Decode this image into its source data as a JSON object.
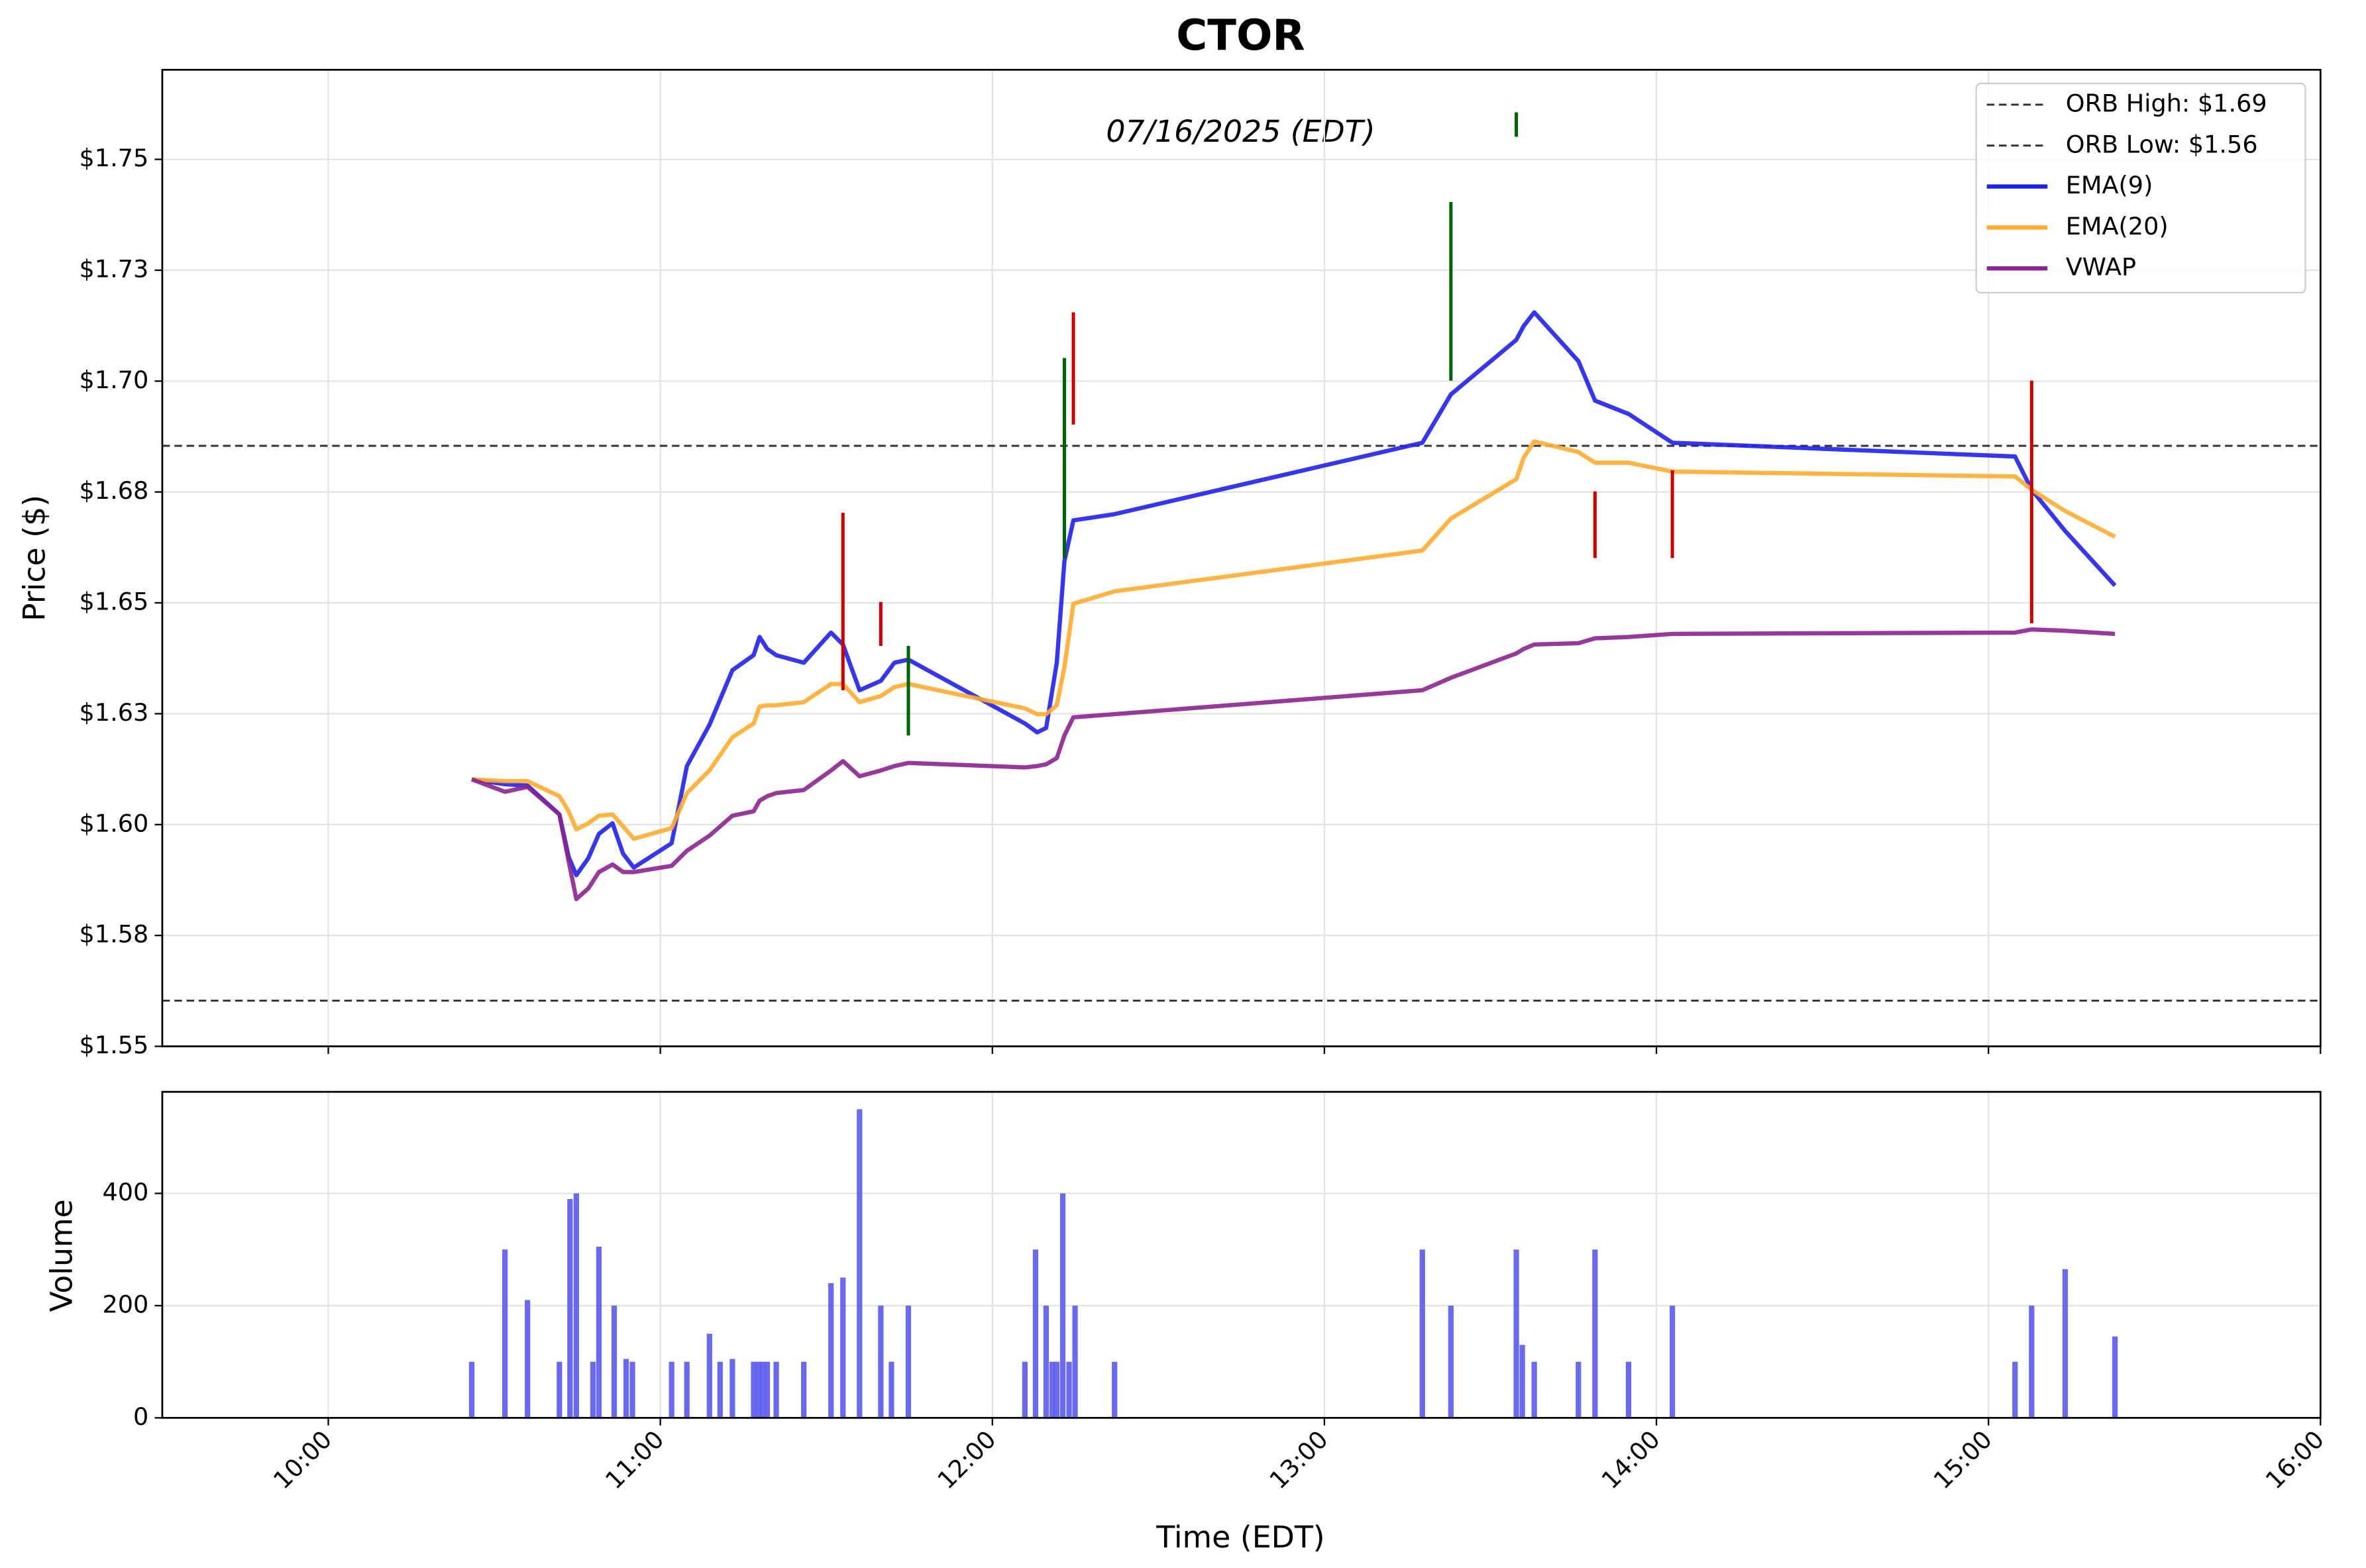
{
  "chart_data": [
    {
      "type": "line",
      "title": "CTOR",
      "subtitle": "07/16/2025 (EDT)",
      "y_label": "Price ($)",
      "xlim": [
        9.5,
        16
      ],
      "xticks": [
        10,
        11,
        12,
        13,
        14,
        15,
        16
      ],
      "ylim": [
        1.55,
        1.7702
      ],
      "yticks": [
        {
          "value": 1.55,
          "label": "$1.55"
        },
        {
          "value": 1.575,
          "label": "$1.58"
        },
        {
          "value": 1.6,
          "label": "$1.60"
        },
        {
          "value": 1.625,
          "label": "$1.63"
        },
        {
          "value": 1.65,
          "label": "$1.65"
        },
        {
          "value": 1.675,
          "label": "$1.68"
        },
        {
          "value": 1.7,
          "label": "$1.70"
        },
        {
          "value": 1.725,
          "label": "$1.73"
        },
        {
          "value": 1.75,
          "label": "$1.75"
        }
      ],
      "grid": true,
      "legend": "upper right",
      "hlines": [
        {
          "name": "ORB High: $1.69",
          "value": 1.6854,
          "color": "#333333"
        },
        {
          "name": "ORB Low: $1.56",
          "value": 1.5603,
          "color": "#333333"
        }
      ],
      "x": [
        10.432,
        10.532,
        10.6,
        10.696,
        10.724,
        10.747,
        10.783,
        10.815,
        10.856,
        10.888,
        10.92,
        11.034,
        11.08,
        11.148,
        11.217,
        11.281,
        11.299,
        11.322,
        11.349,
        11.432,
        11.514,
        11.55,
        11.6,
        11.664,
        11.705,
        11.747,
        12.098,
        12.135,
        12.162,
        12.194,
        12.217,
        12.244,
        12.368,
        13.295,
        13.381,
        13.578,
        13.6,
        13.632,
        13.765,
        13.815,
        13.916,
        14.048,
        15.08,
        15.13,
        15.231,
        15.381
      ],
      "series": [
        {
          "name": "EMA(9)",
          "color": "#2020ee",
          "values": [
            1.6102,
            1.6091,
            1.6088,
            1.6023,
            1.5927,
            1.5886,
            1.5924,
            1.5979,
            1.6003,
            1.5934,
            1.5903,
            1.5958,
            1.6132,
            1.6225,
            1.6348,
            1.6382,
            1.6423,
            1.6396,
            1.6382,
            1.6365,
            1.6433,
            1.6406,
            1.6303,
            1.6324,
            1.6365,
            1.6372,
            1.6228,
            1.6208,
            1.6218,
            1.6365,
            1.6594,
            1.6686,
            1.67,
            1.6861,
            1.697,
            1.7093,
            1.7124,
            1.7155,
            1.7045,
            1.6956,
            1.6926,
            1.6861,
            1.683,
            1.6755,
            1.6662,
            1.6539
          ]
        },
        {
          "name": "EMA(20)",
          "color": "#ffab2e",
          "values": [
            1.6102,
            1.6098,
            1.6098,
            1.6064,
            1.603,
            1.5989,
            1.6003,
            1.602,
            1.6023,
            1.5996,
            1.5968,
            1.5992,
            1.6071,
            1.6122,
            1.6197,
            1.6228,
            1.6266,
            1.6269,
            1.6269,
            1.6276,
            1.6317,
            1.6317,
            1.6276,
            1.629,
            1.631,
            1.6317,
            1.6262,
            1.6249,
            1.6249,
            1.6269,
            1.6355,
            1.6498,
            1.6526,
            1.6618,
            1.669,
            1.6779,
            1.6827,
            1.6864,
            1.684,
            1.6816,
            1.6816,
            1.6796,
            1.6785,
            1.6755,
            1.6707,
            1.6649
          ]
        },
        {
          "name": "VWAP",
          "color": "#8b2390",
          "values": [
            1.6102,
            1.6074,
            1.6085,
            1.6023,
            1.5917,
            1.5832,
            1.5856,
            1.5893,
            1.591,
            1.5893,
            1.5893,
            1.5907,
            1.5941,
            1.5975,
            1.602,
            1.603,
            1.6054,
            1.6064,
            1.6071,
            1.6078,
            1.6122,
            1.6143,
            1.6109,
            1.6122,
            1.6132,
            1.6139,
            1.6129,
            1.6132,
            1.6136,
            1.615,
            1.6201,
            1.6242,
            1.6249,
            1.6303,
            1.6331,
            1.6386,
            1.6396,
            1.6406,
            1.6409,
            1.642,
            1.6423,
            1.643,
            1.6433,
            1.644,
            1.6437,
            1.643
          ]
        }
      ],
      "wicks": [
        {
          "x": 11.55,
          "low": 1.6303,
          "high": 1.6703,
          "color": "#cc0000"
        },
        {
          "x": 11.664,
          "low": 1.6403,
          "high": 1.6502,
          "color": "#cc0000"
        },
        {
          "x": 11.747,
          "low": 1.6201,
          "high": 1.6403,
          "color": "#006400"
        },
        {
          "x": 12.217,
          "low": 1.6601,
          "high": 1.7052,
          "color": "#006400"
        },
        {
          "x": 12.244,
          "low": 1.6902,
          "high": 1.7155,
          "color": "#cc0000"
        },
        {
          "x": 13.381,
          "low": 1.7001,
          "high": 1.7404,
          "color": "#006400"
        },
        {
          "x": 13.578,
          "low": 1.7551,
          "high": 1.7606,
          "color": "#006400"
        },
        {
          "x": 13.815,
          "low": 1.6601,
          "high": 1.6751,
          "color": "#cc0000"
        },
        {
          "x": 14.048,
          "low": 1.6601,
          "high": 1.6799,
          "color": "#cc0000"
        },
        {
          "x": 15.13,
          "low": 1.6454,
          "high": 1.7001,
          "color": "#cc0000"
        }
      ]
    },
    {
      "type": "bar",
      "y_label": "Volume",
      "x_label": "Time (EDT)",
      "color": "#5a5af0",
      "xlim": [
        9.5,
        16
      ],
      "xticks": [
        {
          "value": 10,
          "label": "10:00"
        },
        {
          "value": 11,
          "label": "11:00"
        },
        {
          "value": 12,
          "label": "12:00"
        },
        {
          "value": 13,
          "label": "13:00"
        },
        {
          "value": 14,
          "label": "14:00"
        },
        {
          "value": 15,
          "label": "15:00"
        },
        {
          "value": 16,
          "label": "16:00"
        }
      ],
      "ylim": [
        0,
        581
      ],
      "yticks": [
        0,
        200,
        400
      ],
      "grid": true,
      "x": [
        10.432,
        10.532,
        10.6,
        10.696,
        10.728,
        10.747,
        10.797,
        10.815,
        10.861,
        10.897,
        10.916,
        11.034,
        11.08,
        11.148,
        11.18,
        11.217,
        11.281,
        11.295,
        11.308,
        11.322,
        11.349,
        11.432,
        11.514,
        11.55,
        11.6,
        11.664,
        11.696,
        11.747,
        12.098,
        12.13,
        12.162,
        12.18,
        12.194,
        12.212,
        12.231,
        12.249,
        12.368,
        13.295,
        13.381,
        13.578,
        13.596,
        13.632,
        13.765,
        13.815,
        13.916,
        14.048,
        15.08,
        15.13,
        15.231,
        15.381
      ],
      "values": [
        100,
        300,
        210,
        100,
        390,
        400,
        100,
        305,
        200,
        105,
        100,
        100,
        100,
        150,
        100,
        105,
        100,
        100,
        100,
        100,
        100,
        100,
        240,
        250,
        550,
        200,
        100,
        200,
        100,
        300,
        200,
        100,
        100,
        400,
        100,
        200,
        100,
        300,
        200,
        300,
        130,
        100,
        100,
        300,
        100,
        200,
        100,
        200,
        265,
        145
      ]
    }
  ]
}
